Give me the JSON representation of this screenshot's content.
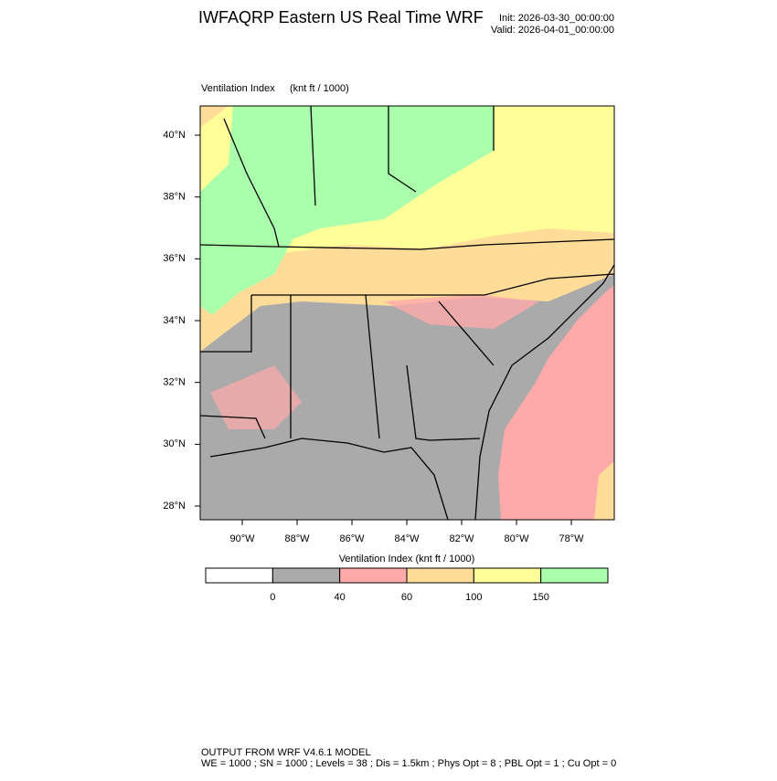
{
  "header": {
    "title": "IWFAQRP Eastern US Real Time WRF",
    "init": "Init: 2026-03-30_00:00:00",
    "valid": "Valid: 2026-04-01_00:00:00"
  },
  "map": {
    "field": "Ventilation Index",
    "units": "(knt ft / 1000)",
    "lat_ticks": [
      {
        "value": 40,
        "label": "40°N"
      },
      {
        "value": 38,
        "label": "38°N"
      },
      {
        "value": 36,
        "label": "36°N"
      },
      {
        "value": 34,
        "label": "34°N"
      },
      {
        "value": 32,
        "label": "32°N"
      },
      {
        "value": 30,
        "label": "30°N"
      },
      {
        "value": 28,
        "label": "28°N"
      }
    ],
    "lon_ticks": [
      {
        "value": -90,
        "label": "90°W"
      },
      {
        "value": -88,
        "label": "88°W"
      },
      {
        "value": -86,
        "label": "86°W"
      },
      {
        "value": -84,
        "label": "84°W"
      },
      {
        "value": -82,
        "label": "82°W"
      },
      {
        "value": -80,
        "label": "80°W"
      },
      {
        "value": -78,
        "label": "78°W"
      }
    ]
  },
  "colorbar": {
    "title": "Ventilation Index  (knt ft / 1000)",
    "levels": [
      0,
      40,
      60,
      100,
      150
    ],
    "colors": [
      "#ffffff",
      "#aaaaaa",
      "#ffaaaa",
      "#ffdd99",
      "#ffff99",
      "#aaffaa"
    ]
  },
  "footer": {
    "line1": "OUTPUT FROM WRF V4.6.1 MODEL",
    "line2": "WE = 1000 ; SN = 1000 ; Levels = 38 ; Dis = 1.5km ; Phys Opt = 8 ; PBL Opt = 1 ; Cu Opt = 0"
  }
}
